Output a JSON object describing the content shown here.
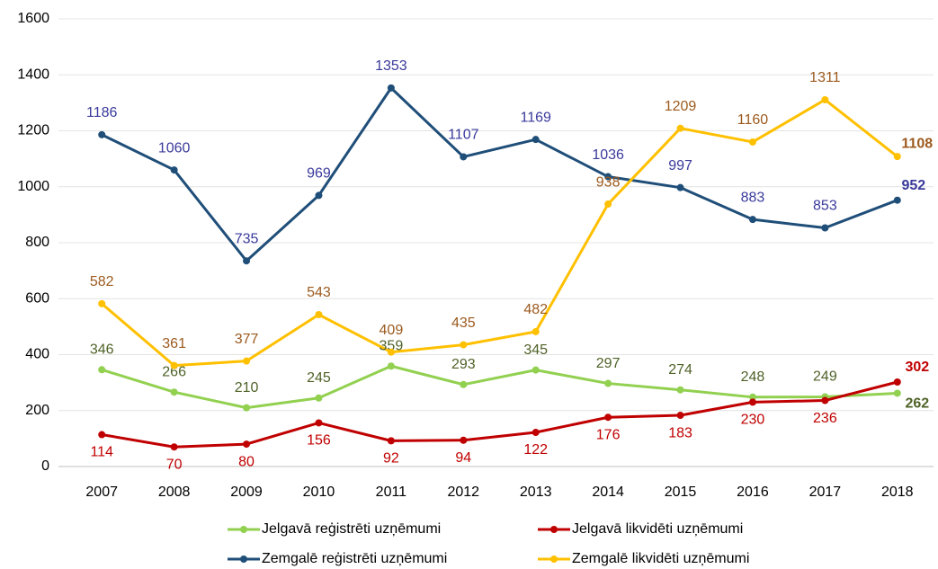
{
  "chart_data": {
    "type": "line",
    "categories": [
      "2007",
      "2008",
      "2009",
      "2010",
      "2011",
      "2012",
      "2013",
      "2014",
      "2015",
      "2016",
      "2017",
      "2018"
    ],
    "series": [
      {
        "name": "Jelgavā reģistrēti uzņēmumi",
        "color": "#92d050",
        "label_color": "#4f6228",
        "values": [
          346,
          266,
          210,
          245,
          359,
          293,
          345,
          297,
          274,
          248,
          249,
          262
        ]
      },
      {
        "name": "Jelgavā likvidēti uzņēmumi",
        "color": "#c00000",
        "label_color": "#c00000",
        "values": [
          114,
          70,
          80,
          156,
          92,
          94,
          122,
          176,
          183,
          230,
          236,
          302
        ]
      },
      {
        "name": "Zemgalē reģistrēti uzņēmumi",
        "color": "#1f4e79",
        "label_color": "#3a3a9c",
        "values": [
          1186,
          1060,
          735,
          969,
          1353,
          1107,
          1169,
          1036,
          997,
          883,
          853,
          952
        ]
      },
      {
        "name": "Zemgalē likvidēti uzņēmumi",
        "color": "#ffc000",
        "label_color": "#9c5a1e",
        "values": [
          582,
          361,
          377,
          543,
          409,
          435,
          482,
          938,
          1209,
          1160,
          1311,
          1108
        ]
      }
    ],
    "ylim": [
      0,
      1600
    ],
    "yticks": [
      0,
      200,
      400,
      600,
      800,
      1000,
      1200,
      1400,
      1600
    ],
    "grid": true
  }
}
